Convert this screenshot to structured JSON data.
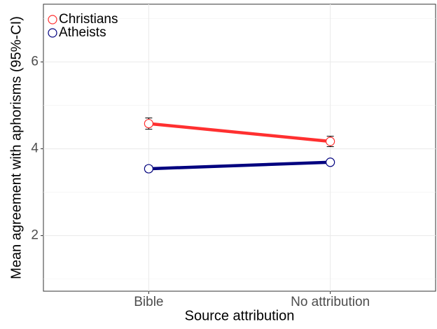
{
  "chart_data": {
    "type": "line",
    "x_label": "Source attribution",
    "y_label": "Mean agreement with aphorisms (95%-CI)",
    "categories": [
      "Bible",
      "No attribution"
    ],
    "series": [
      {
        "name": "Christians",
        "color": "#ff3030",
        "values": [
          4.58,
          4.17
        ],
        "errors": [
          0.13,
          0.12
        ]
      },
      {
        "name": "Atheists",
        "color": "#00007f",
        "values": [
          3.54,
          3.69
        ],
        "errors": [
          0.07,
          0.05
        ]
      }
    ],
    "ylim": [
      0.72,
      7.33
    ],
    "yticks": [
      2,
      4,
      6
    ],
    "grid": true,
    "legend": "top-left"
  }
}
